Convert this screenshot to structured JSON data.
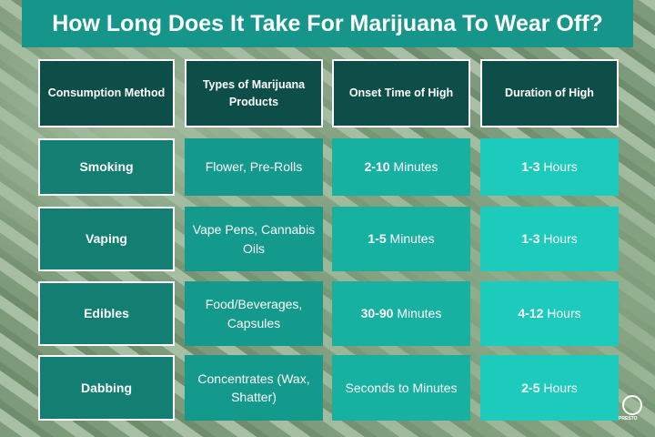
{
  "title": "How Long Does It Take For Marijuana To Wear Off?",
  "headers": [
    "Consumption Method",
    "Types of Marijuana Products",
    "Onset Time of High",
    "Duration of High"
  ],
  "rows": [
    {
      "method": "Smoking",
      "products": "Flower, Pre-Rolls",
      "onset_bold": "2-10",
      "onset_rest": " Minutes",
      "duration_bold": "1-3",
      "duration_rest": " Hours"
    },
    {
      "method": "Vaping",
      "products": "Vape Pens, Cannabis Oils",
      "onset_bold": "1-5",
      "onset_rest": " Minutes",
      "duration_bold": "1-3",
      "duration_rest": " Hours"
    },
    {
      "method": "Edibles",
      "products": "Food/Beverages, Capsules",
      "onset_bold": "30-90",
      "onset_rest": " Minutes",
      "duration_bold": "4-12",
      "duration_rest": " Hours"
    },
    {
      "method": "Dabbing",
      "products": "Concentrates (Wax, Shatter)",
      "onset_bold": "",
      "onset_rest": "Seconds to Minutes",
      "duration_bold": "2-5",
      "duration_rest": " Hours"
    }
  ],
  "logo": {
    "text": "PRESTO"
  },
  "colors": {
    "title": "#16968a",
    "header": "#0d4f48",
    "col1": "#127f72",
    "col2": "#139a8c",
    "col3": "#17b1a2",
    "col4": "#1ccbbc"
  }
}
